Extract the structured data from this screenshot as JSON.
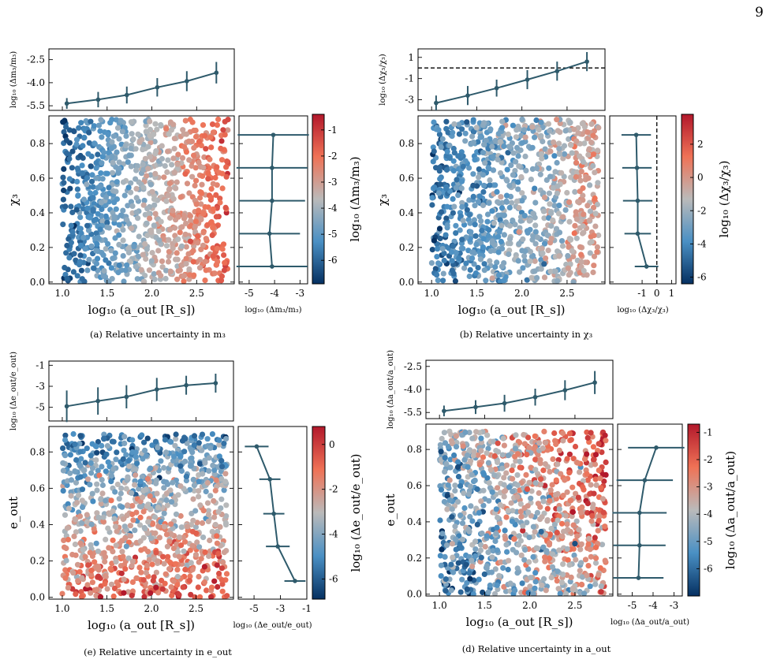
{
  "page": {
    "number": "9"
  },
  "colorscale": {
    "low": "#053061",
    "mid": "#b4b4b4",
    "high": "#b2182b",
    "line": "#2e5a6b"
  },
  "panels": [
    {
      "id": "a",
      "caption": "(a) Relative uncertainty in m₃",
      "x_label": "log₁₀ (a_out [R_s])",
      "y_label": "χ₃",
      "top_ylabel": "log₁₀ (Δm₃/m₃)",
      "side_xlabel": "log₁₀ (Δm₃/m₃)",
      "cbar_label": "log₁₀ (Δm₃/m₃)",
      "y_ticks": [
        "0.0",
        "0.2",
        "0.4",
        "0.6",
        "0.8"
      ],
      "x_ticks": [
        "1.0",
        "1.5",
        "2.0",
        "2.5"
      ],
      "top_ticks": [
        "-2.5",
        "-4.0",
        "-5.5"
      ],
      "side_ticks": [
        "-5",
        "-4",
        "-3"
      ],
      "cbar_ticks": [
        "-1",
        "-2",
        "-3",
        "-4",
        "-5",
        "-6"
      ]
    },
    {
      "id": "b",
      "caption": "(b) Relative uncertainty in χ₃",
      "x_label": "log₁₀ (a_out [R_s])",
      "y_label": "χ₃",
      "top_ylabel": "log₁₀ (Δχ₃/χ₃)",
      "side_xlabel": "log₁₀ (Δχ₃/χ₃)",
      "cbar_label": "log₁₀ (Δχ₃/χ₃)",
      "y_ticks": [
        "0.0",
        "0.2",
        "0.4",
        "0.6",
        "0.8"
      ],
      "x_ticks": [
        "1.0",
        "1.5",
        "2.0",
        "2.5"
      ],
      "top_ticks": [
        "1",
        "-1",
        "-3"
      ],
      "side_ticks": [
        "-1",
        "0",
        "1"
      ],
      "cbar_ticks": [
        "2",
        "0",
        "-2",
        "-4",
        "-6"
      ]
    },
    {
      "id": "e",
      "caption": "(e) Relative uncertainty in e_out",
      "x_label": "log₁₀ (a_out [R_s])",
      "y_label": "e_out",
      "top_ylabel": "log₁₀ (Δe_out/e_out)",
      "side_xlabel": "log₁₀ (Δe_out/e_out)",
      "cbar_label": "log₁₀ (Δe_out/e_out)",
      "y_ticks": [
        "0.0",
        "0.2",
        "0.4",
        "0.6",
        "0.8"
      ],
      "x_ticks": [
        "1.0",
        "1.5",
        "2.0",
        "2.5"
      ],
      "top_ticks": [
        "-1",
        "-3",
        "-5"
      ],
      "side_ticks": [
        "-5",
        "-3",
        "-1"
      ],
      "cbar_ticks": [
        "0",
        "-2",
        "-4",
        "-6"
      ]
    },
    {
      "id": "d",
      "caption": "(d) Relative uncertainty in a_out",
      "x_label": "log₁₀ (a_out [R_s])",
      "y_label": "e_out",
      "top_ylabel": "log₁₀ (Δa_out/a_out)",
      "side_xlabel": "log₁₀ (Δa_out/a_out)",
      "cbar_label": "log₁₀ (Δa_out/a_out)",
      "y_ticks": [
        "0.0",
        "0.2",
        "0.4",
        "0.6",
        "0.8"
      ],
      "x_ticks": [
        "1.0",
        "1.5",
        "2.0",
        "2.5"
      ],
      "top_ticks": [
        "-2.5",
        "-4.0",
        "-5.5"
      ],
      "side_ticks": [
        "-5",
        "-4",
        "-3"
      ],
      "cbar_ticks": [
        "-1",
        "-2",
        "-3",
        "-4",
        "-5",
        "-6"
      ]
    }
  ],
  "chart_data": [
    {
      "type": "scatter",
      "panel": "a",
      "xlim": [
        0.85,
        2.92
      ],
      "ylim": [
        -0.01,
        0.96
      ],
      "clim": [
        -6.9,
        -0.4
      ],
      "n_points": 1000,
      "top_profile": {
        "x": [
          1.05,
          1.4,
          1.72,
          2.06,
          2.39,
          2.72
        ],
        "y": [
          -5.35,
          -5.1,
          -4.8,
          -4.3,
          -3.9,
          -3.35
        ],
        "err": [
          0.35,
          0.5,
          0.55,
          0.6,
          0.65,
          0.7
        ],
        "ylim": [
          -5.8,
          -1.8
        ]
      },
      "side_profile": {
        "y": [
          0.09,
          0.28,
          0.47,
          0.66,
          0.85
        ],
        "x": [
          -4.1,
          -4.2,
          -4.1,
          -4.1,
          -4.05
        ],
        "err": [
          1.4,
          1.2,
          1.3,
          1.4,
          1.4
        ],
        "xlim": [
          -5.4,
          -2.7
        ]
      }
    },
    {
      "type": "scatter",
      "panel": "b",
      "xlim": [
        0.85,
        2.92
      ],
      "ylim": [
        -0.01,
        0.96
      ],
      "clim": [
        -6.4,
        3.8
      ],
      "n_points": 1000,
      "threshold": 0,
      "top_profile": {
        "x": [
          1.05,
          1.4,
          1.72,
          2.06,
          2.39,
          2.72
        ],
        "y": [
          -3.3,
          -2.6,
          -1.9,
          -1.1,
          -0.3,
          0.6
        ],
        "err": [
          0.7,
          0.9,
          0.8,
          0.9,
          0.9,
          0.9
        ],
        "ylim": [
          -4.0,
          1.8
        ]
      },
      "side_profile": {
        "y": [
          0.09,
          0.28,
          0.47,
          0.66,
          0.85
        ],
        "x": [
          -0.7,
          -1.3,
          -1.3,
          -1.35,
          -1.4
        ],
        "err": [
          0.8,
          0.9,
          1.0,
          1.0,
          1.0
        ],
        "xlim": [
          -3.2,
          1.3
        ]
      }
    },
    {
      "type": "scatter",
      "panel": "e",
      "xlim": [
        0.85,
        2.92
      ],
      "ylim": [
        -0.01,
        0.94
      ],
      "clim": [
        -6.9,
        0.8
      ],
      "n_points": 1000,
      "top_profile": {
        "x": [
          1.05,
          1.4,
          1.72,
          2.06,
          2.39,
          2.72
        ],
        "y": [
          -4.9,
          -4.4,
          -4.0,
          -3.3,
          -2.9,
          -2.7
        ],
        "err": [
          1.5,
          1.3,
          1.1,
          1.1,
          0.9,
          0.9
        ],
        "ylim": [
          -6.3,
          -0.6
        ]
      },
      "side_profile": {
        "y": [
          0.09,
          0.28,
          0.46,
          0.65,
          0.83
        ],
        "x": [
          -1.9,
          -3.2,
          -3.5,
          -3.8,
          -4.8
        ],
        "err": [
          0.8,
          0.9,
          0.8,
          0.8,
          0.9
        ],
        "xlim": [
          -6.2,
          -1.0
        ]
      }
    },
    {
      "type": "scatter",
      "panel": "d",
      "xlim": [
        0.85,
        2.92
      ],
      "ylim": [
        -0.01,
        0.94
      ],
      "clim": [
        -7.0,
        -0.7
      ],
      "n_points": 1000,
      "top_profile": {
        "x": [
          1.05,
          1.4,
          1.72,
          2.06,
          2.39,
          2.72
        ],
        "y": [
          -5.4,
          -5.15,
          -4.9,
          -4.5,
          -4.05,
          -3.55
        ],
        "err": [
          0.35,
          0.45,
          0.55,
          0.55,
          0.65,
          0.75
        ],
        "ylim": [
          -5.9,
          -2.1
        ]
      },
      "side_profile": {
        "y": [
          0.09,
          0.27,
          0.45,
          0.63,
          0.81
        ],
        "x": [
          -4.7,
          -4.65,
          -4.65,
          -4.4,
          -3.85
        ],
        "err": [
          1.2,
          1.25,
          1.3,
          1.35,
          1.35
        ],
        "xlim": [
          -5.7,
          -2.6
        ]
      }
    }
  ]
}
